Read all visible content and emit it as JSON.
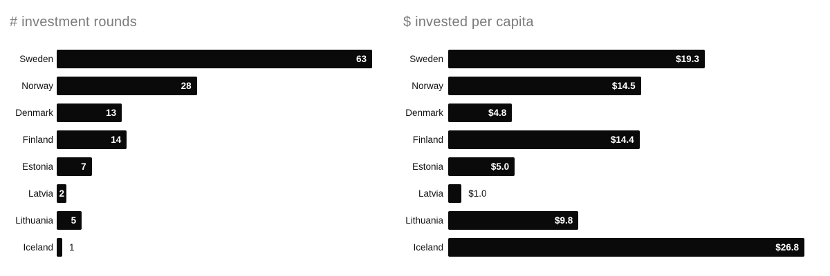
{
  "page": {
    "background": "#ffffff",
    "bar_color": "#0a0a0a",
    "title_color": "#7b7b7b",
    "label_color": "#111111",
    "value_inside_color": "#ffffff"
  },
  "chart_data": [
    {
      "type": "bar",
      "orientation": "horizontal",
      "title": "# investment rounds",
      "categories": [
        "Sweden",
        "Norway",
        "Denmark",
        "Finland",
        "Estonia",
        "Latvia",
        "Lithuania",
        "Iceland"
      ],
      "values": [
        63,
        28,
        13,
        14,
        7,
        2,
        5,
        1
      ],
      "data_labels": [
        "63",
        "28",
        "13",
        "14",
        "7",
        "2",
        "5",
        "1"
      ],
      "label_inside": [
        true,
        true,
        true,
        true,
        true,
        true,
        true,
        false
      ],
      "xlabel": "",
      "ylabel": "",
      "xlim": [
        0,
        63
      ],
      "legend": "none",
      "grid": false
    },
    {
      "type": "bar",
      "orientation": "horizontal",
      "title": "$ invested per capita",
      "categories": [
        "Sweden",
        "Norway",
        "Denmark",
        "Finland",
        "Estonia",
        "Latvia",
        "Lithuania",
        "Iceland"
      ],
      "values": [
        19.3,
        14.5,
        4.8,
        14.4,
        5.0,
        1.0,
        9.8,
        26.8
      ],
      "data_labels": [
        "$19.3",
        "$14.5",
        "$4.8",
        "$14.4",
        "$5.0",
        "$1.0",
        "$9.8",
        "$26.8"
      ],
      "label_inside": [
        true,
        true,
        true,
        true,
        true,
        false,
        true,
        true
      ],
      "xlabel": "",
      "ylabel": "",
      "xlim": [
        0,
        26.8
      ],
      "legend": "none",
      "grid": false
    }
  ]
}
